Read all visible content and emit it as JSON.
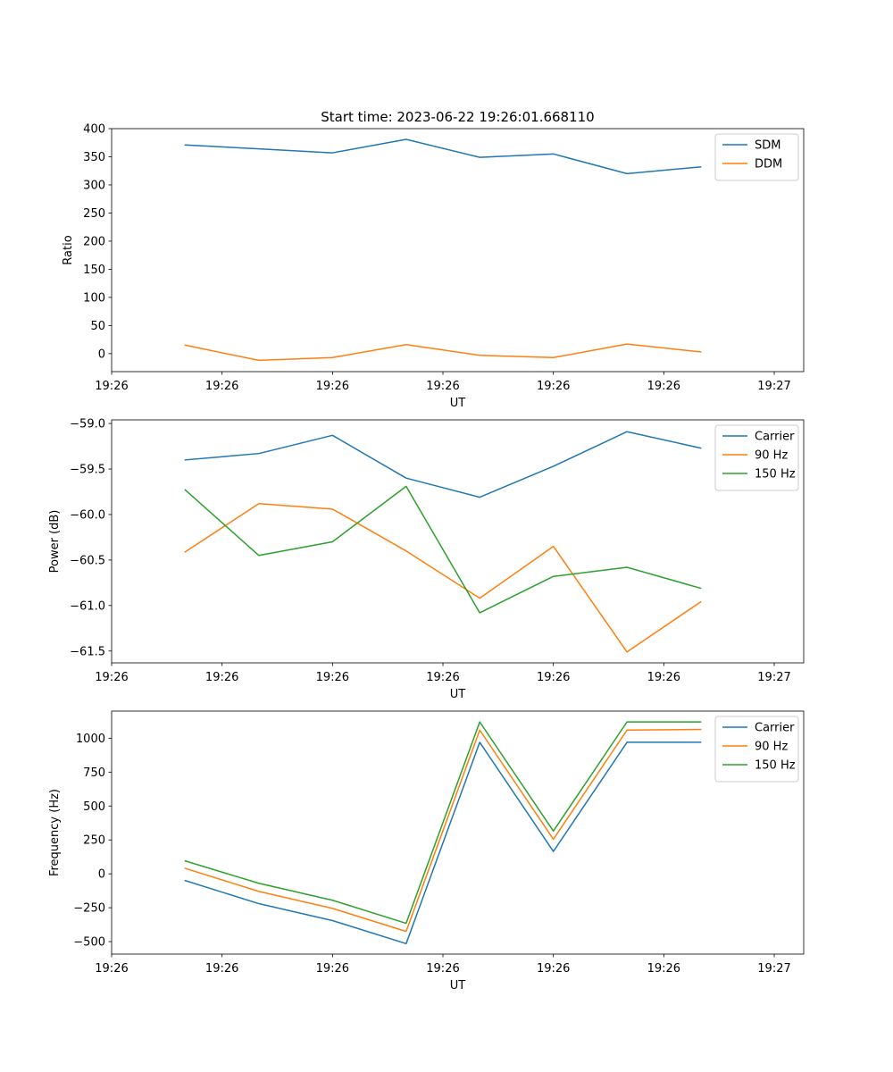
{
  "figure": {
    "title": "Start time: 2023-06-22 19:26:01.668110"
  },
  "chart_data": [
    {
      "type": "line",
      "ylabel": "Ratio",
      "xlabel": "UT",
      "ylim": [
        -32,
        400
      ],
      "yticks": [
        0,
        50,
        100,
        150,
        200,
        250,
        300,
        350,
        400
      ],
      "x": [
        1,
        2,
        3,
        4,
        5,
        6,
        7,
        8
      ],
      "xlim": [
        0,
        9.4
      ],
      "xticks": [
        {
          "value": 0,
          "label": "19:26"
        },
        {
          "value": 1.5,
          "label": "19:26"
        },
        {
          "value": 3,
          "label": "19:26"
        },
        {
          "value": 4.5,
          "label": "19:26"
        },
        {
          "value": 6,
          "label": "19:26"
        },
        {
          "value": 7.5,
          "label": "19:26"
        },
        {
          "value": 9,
          "label": "19:27"
        }
      ],
      "legend": "top-right",
      "grid": false,
      "series": [
        {
          "name": "SDM",
          "color": "#1f77b4",
          "values": [
            371,
            364,
            357,
            381,
            349,
            355,
            320,
            332
          ]
        },
        {
          "name": "DDM",
          "color": "#ff7f0e",
          "values": [
            15,
            -12,
            -7,
            16,
            -3,
            -7,
            17,
            3
          ]
        }
      ]
    },
    {
      "type": "line",
      "ylabel": "Power (dB)",
      "xlabel": "UT",
      "ylim": [
        -61.63,
        -58.96
      ],
      "yticks": [
        -61.5,
        -61.0,
        -60.5,
        -60.0,
        -59.5,
        -59.0
      ],
      "ytick_labels": [
        "−61.5",
        "−61.0",
        "−60.5",
        "−60.0",
        "−59.5",
        "−59.0"
      ],
      "x": [
        1,
        2,
        3,
        4,
        5,
        6,
        7,
        8
      ],
      "xlim": [
        0,
        9.4
      ],
      "xticks": [
        {
          "value": 0,
          "label": "19:26"
        },
        {
          "value": 1.5,
          "label": "19:26"
        },
        {
          "value": 3,
          "label": "19:26"
        },
        {
          "value": 4.5,
          "label": "19:26"
        },
        {
          "value": 6,
          "label": "19:26"
        },
        {
          "value": 7.5,
          "label": "19:26"
        },
        {
          "value": 9,
          "label": "19:27"
        }
      ],
      "legend": "top-right",
      "grid": false,
      "series": [
        {
          "name": "Carrier",
          "color": "#1f77b4",
          "values": [
            -59.4,
            -59.33,
            -59.13,
            -59.6,
            -59.81,
            -59.47,
            -59.09,
            -59.27
          ]
        },
        {
          "name": "90 Hz",
          "color": "#ff7f0e",
          "values": [
            -60.41,
            -59.88,
            -59.94,
            -60.4,
            -60.92,
            -60.35,
            -61.51,
            -60.96
          ]
        },
        {
          "name": "150 Hz",
          "color": "#2ca02c",
          "values": [
            -59.73,
            -60.45,
            -60.3,
            -59.69,
            -61.08,
            -60.68,
            -60.58,
            -60.81
          ]
        }
      ]
    },
    {
      "type": "line",
      "ylabel": "Frequency (Hz)",
      "xlabel": "UT",
      "ylim": [
        -592,
        1200
      ],
      "yticks": [
        -500,
        -250,
        0,
        250,
        500,
        750,
        1000
      ],
      "ytick_labels": [
        "−500",
        "−250",
        "0",
        "250",
        "500",
        "750",
        "1000"
      ],
      "x": [
        1,
        2,
        3,
        4,
        5,
        6,
        7,
        8
      ],
      "xlim": [
        0,
        9.4
      ],
      "xticks": [
        {
          "value": 0,
          "label": "19:26"
        },
        {
          "value": 1.5,
          "label": "19:26"
        },
        {
          "value": 3,
          "label": "19:26"
        },
        {
          "value": 4.5,
          "label": "19:26"
        },
        {
          "value": 6,
          "label": "19:26"
        },
        {
          "value": 7.5,
          "label": "19:26"
        },
        {
          "value": 9,
          "label": "19:27"
        }
      ],
      "legend": "top-right",
      "grid": false,
      "series": [
        {
          "name": "Carrier",
          "color": "#1f77b4",
          "values": [
            -50,
            -220,
            -345,
            -515,
            970,
            165,
            970,
            970
          ]
        },
        {
          "name": "90 Hz",
          "color": "#ff7f0e",
          "values": [
            40,
            -130,
            -255,
            -425,
            1060,
            255,
            1060,
            1065
          ]
        },
        {
          "name": "150 Hz",
          "color": "#2ca02c",
          "values": [
            95,
            -70,
            -195,
            -365,
            1120,
            315,
            1120,
            1120
          ]
        }
      ]
    }
  ]
}
